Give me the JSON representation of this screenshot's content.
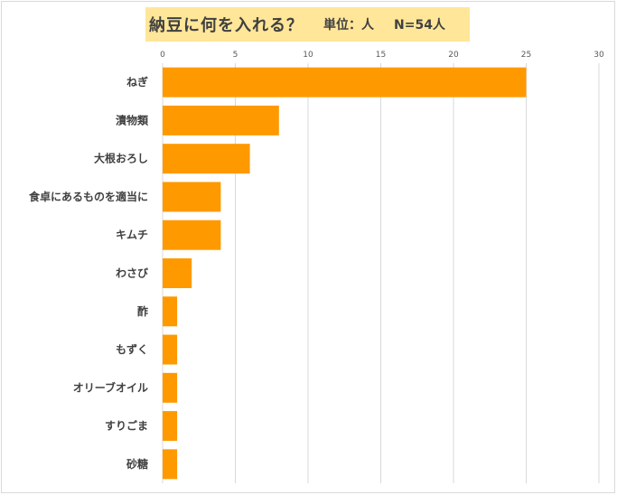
{
  "chart_data": {
    "type": "bar",
    "orientation": "horizontal",
    "title": "納豆に何を入れる？",
    "unit_label": "単位：人",
    "sample_label": "N=54人",
    "categories": [
      "ねぎ",
      "漬物類",
      "大根おろし",
      "食卓にあるものを適当に",
      "キムチ",
      "わさび",
      "酢",
      "もずく",
      "オリーブオイル",
      "すりごま",
      "砂糖"
    ],
    "values": [
      25,
      8,
      6,
      4,
      4,
      2,
      1,
      1,
      1,
      1,
      1
    ],
    "xlim": [
      0,
      30
    ],
    "xticks": [
      "0",
      "5",
      "10",
      "15",
      "20",
      "25",
      "30"
    ],
    "xaxis_position": "top",
    "grid": true,
    "bar_color": "#ff9900"
  }
}
